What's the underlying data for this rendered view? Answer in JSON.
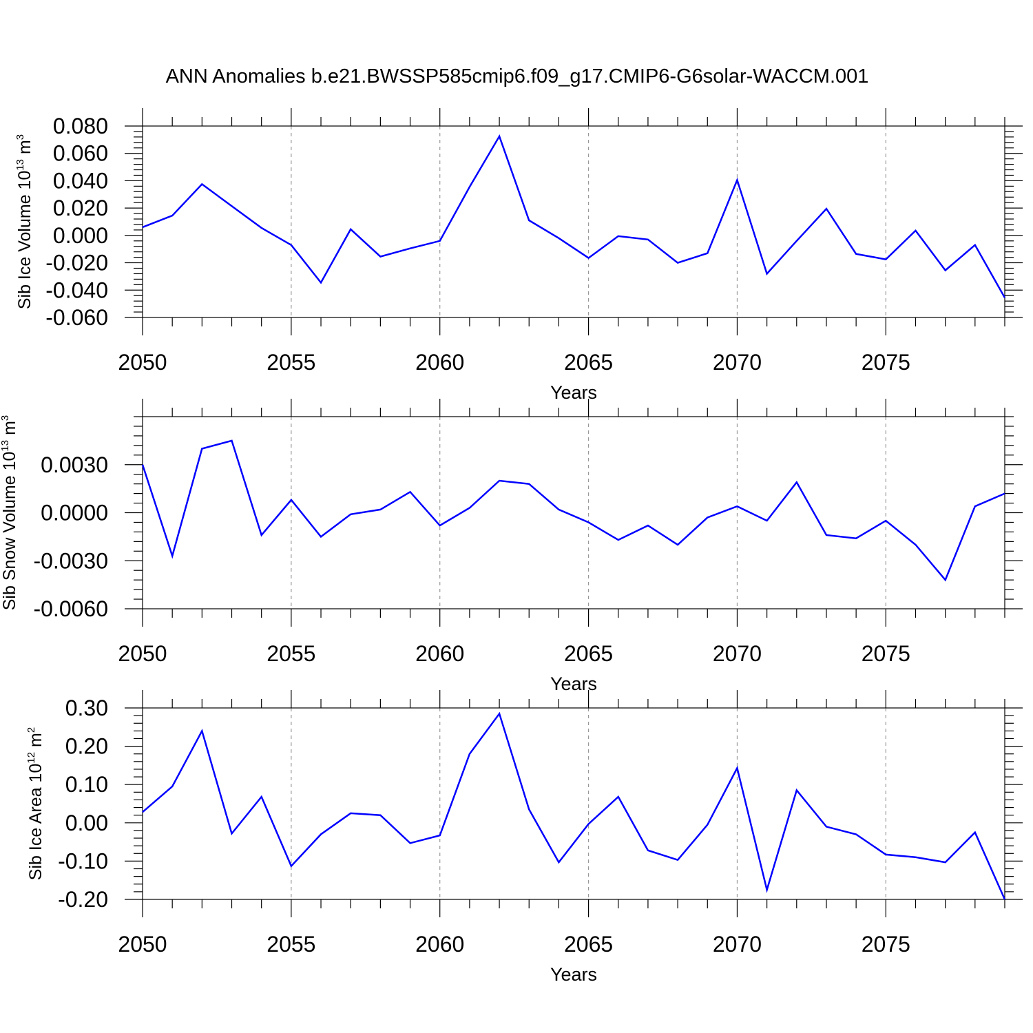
{
  "title": "ANN Anomalies b.e21.BWSSP585cmip6.f09_g17.CMIP6-G6solar-WACCM.001",
  "colors": {
    "line": "#0000ff",
    "axis": "#000000",
    "grid": "#999999"
  },
  "chart_data": [
    {
      "type": "line",
      "ylabel": {
        "base": "Sib Ice Volume 10",
        "exp": "13",
        "unit": " m",
        "unit_exp": "3"
      },
      "xlabel": "Years",
      "xlim": [
        2050,
        2079
      ],
      "ylim": [
        -0.06,
        0.08
      ],
      "ytick_values": [
        -0.06,
        -0.04,
        -0.02,
        0.0,
        0.02,
        0.04,
        0.06,
        0.08
      ],
      "ytick_labels": [
        "-0.060",
        "-0.040",
        "-0.020",
        "0.000",
        "0.020",
        "0.040",
        "0.060",
        "0.080"
      ],
      "xtick_values": [
        2050,
        2055,
        2060,
        2065,
        2070,
        2075
      ],
      "xtick_labels": [
        "2050",
        "2055",
        "2060",
        "2065",
        "2070",
        "2075"
      ],
      "grid": "vertical dashed at major x ticks",
      "x": [
        2050,
        2051,
        2052,
        2053,
        2054,
        2055,
        2056,
        2057,
        2058,
        2059,
        2060,
        2061,
        2062,
        2063,
        2064,
        2065,
        2066,
        2067,
        2068,
        2069,
        2070,
        2071,
        2072,
        2073,
        2074,
        2075,
        2076,
        2077,
        2078,
        2079
      ],
      "series": [
        {
          "values": [
            0.006,
            0.0145,
            0.0375,
            0.0215,
            0.0055,
            -0.007,
            -0.0345,
            0.0045,
            -0.0155,
            -0.0095,
            -0.004,
            0.0355,
            0.0725,
            0.011,
            -0.002,
            -0.0165,
            -0.0005,
            -0.003,
            -0.02,
            -0.013,
            0.0405,
            -0.028,
            -0.004,
            0.0195,
            -0.0135,
            -0.0175,
            0.0035,
            -0.0255,
            -0.007,
            -0.0455
          ]
        }
      ]
    },
    {
      "type": "line",
      "ylabel": {
        "base": "Sib Snow Volume 10",
        "exp": "13",
        "unit": " m",
        "unit_exp": "3"
      },
      "xlabel": "Years",
      "xlim": [
        2050,
        2079
      ],
      "ylim": [
        -0.006,
        0.006
      ],
      "ytick_values": [
        -0.006,
        -0.003,
        0.0,
        0.003
      ],
      "ytick_labels": [
        "-0.0060",
        "-0.0030",
        "0.0000",
        "0.0030"
      ],
      "xtick_values": [
        2050,
        2055,
        2060,
        2065,
        2070,
        2075
      ],
      "xtick_labels": [
        "2050",
        "2055",
        "2060",
        "2065",
        "2070",
        "2075"
      ],
      "grid": "vertical dashed at major x ticks",
      "x": [
        2050,
        2051,
        2052,
        2053,
        2054,
        2055,
        2056,
        2057,
        2058,
        2059,
        2060,
        2061,
        2062,
        2063,
        2064,
        2065,
        2066,
        2067,
        2068,
        2069,
        2070,
        2071,
        2072,
        2073,
        2074,
        2075,
        2076,
        2077,
        2078,
        2079
      ],
      "series": [
        {
          "values": [
            0.003,
            -0.0027,
            0.004,
            0.0045,
            -0.0014,
            0.0008,
            -0.0015,
            -0.0001,
            0.0002,
            0.0013,
            -0.0008,
            0.0003,
            0.002,
            0.0018,
            0.0002,
            -0.0006,
            -0.0017,
            -0.0008,
            -0.002,
            -0.0003,
            0.0004,
            -0.0005,
            0.0019,
            -0.0014,
            -0.0016,
            -0.0005,
            -0.002,
            -0.0042,
            0.0004,
            0.0012
          ]
        }
      ]
    },
    {
      "type": "line",
      "ylabel": {
        "base": "Sib Ice Area 10",
        "exp": "12",
        "unit": " m",
        "unit_exp": "2"
      },
      "xlabel": "Years",
      "xlim": [
        2050,
        2079
      ],
      "ylim": [
        -0.2,
        0.3
      ],
      "ytick_values": [
        -0.2,
        -0.1,
        0.0,
        0.1,
        0.2,
        0.3
      ],
      "ytick_labels": [
        "-0.20",
        "-0.10",
        "0.00",
        "0.10",
        "0.20",
        "0.30"
      ],
      "xtick_values": [
        2050,
        2055,
        2060,
        2065,
        2070,
        2075
      ],
      "xtick_labels": [
        "2050",
        "2055",
        "2060",
        "2065",
        "2070",
        "2075"
      ],
      "grid": "vertical dashed at major x ticks",
      "x": [
        2050,
        2051,
        2052,
        2053,
        2054,
        2055,
        2056,
        2057,
        2058,
        2059,
        2060,
        2061,
        2062,
        2063,
        2064,
        2065,
        2066,
        2067,
        2068,
        2069,
        2070,
        2071,
        2072,
        2073,
        2074,
        2075,
        2076,
        2077,
        2078,
        2079
      ],
      "series": [
        {
          "values": [
            0.028,
            0.095,
            0.24,
            -0.028,
            0.068,
            -0.113,
            -0.03,
            0.025,
            0.02,
            -0.053,
            -0.033,
            0.18,
            0.285,
            0.035,
            -0.103,
            -0.003,
            0.068,
            -0.072,
            -0.097,
            -0.005,
            0.143,
            -0.175,
            0.085,
            -0.01,
            -0.03,
            -0.083,
            -0.09,
            -0.103,
            -0.025,
            -0.2
          ]
        }
      ]
    }
  ]
}
